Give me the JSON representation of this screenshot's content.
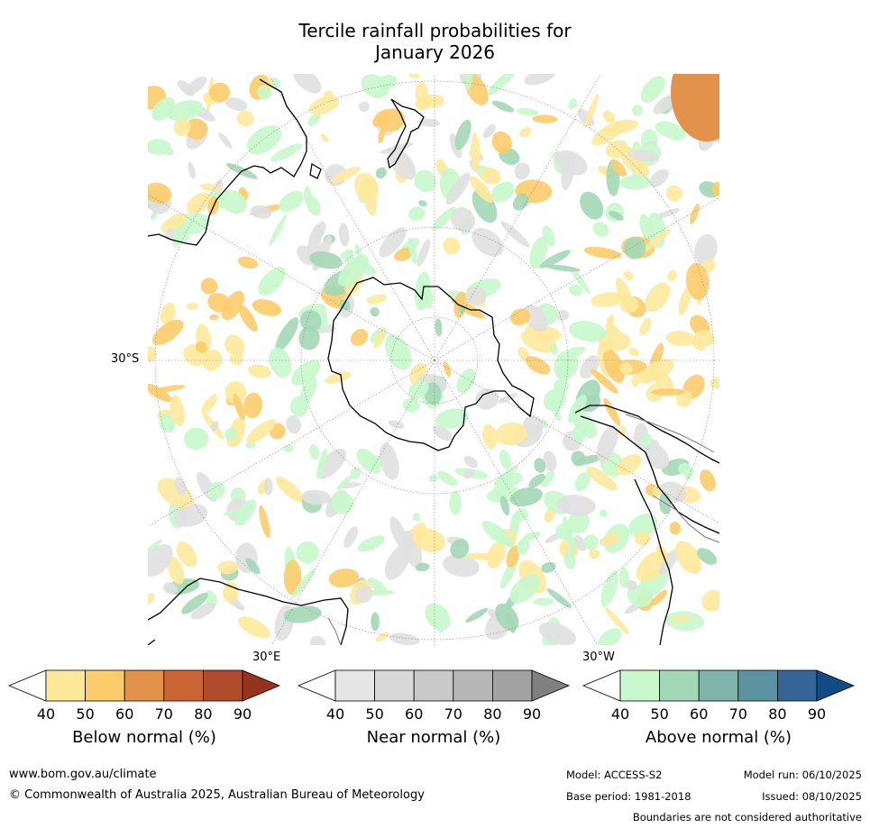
{
  "title_line1": "Tercile rainfall probabilities for",
  "title_line2": "January 2026",
  "map": {
    "projection": "south-polar-stereographic",
    "lat_label": "30°S",
    "lon_label_east": "30°E",
    "lon_label_west": "30°W"
  },
  "colorbars": [
    {
      "title": "Below normal (%)",
      "ticks": [
        "40",
        "50",
        "60",
        "70",
        "80",
        "90"
      ],
      "colors": [
        "#ffffff",
        "#fee99b",
        "#fccc6a",
        "#e2924a",
        "#cc6534",
        "#b04c2b",
        "#97321f"
      ]
    },
    {
      "title": "Near normal (%)",
      "ticks": [
        "40",
        "50",
        "60",
        "70",
        "80",
        "90"
      ],
      "colors": [
        "#ffffff",
        "#e6e6e6",
        "#d8d8d8",
        "#c9c9c9",
        "#b7b7b7",
        "#a2a2a2",
        "#808080"
      ]
    },
    {
      "title": "Above normal (%)",
      "ticks": [
        "40",
        "50",
        "60",
        "70",
        "80",
        "90"
      ],
      "colors": [
        "#ffffff",
        "#c8f8cc",
        "#a3d8b6",
        "#7fb4ac",
        "#5b93a0",
        "#356596",
        "#134b87"
      ]
    }
  ],
  "footer": {
    "url": "www.bom.gov.au/climate",
    "copyright": "© Commonwealth of Australia 2025, Australian Bureau of Meteorology",
    "model": "Model: ACCESS-S2",
    "model_run": "Model run: 06/10/2025",
    "base_period": "Base period: 1981-2018",
    "issued": "Issued: 08/10/2025",
    "disclaimer": "Boundaries are not considered authoritative"
  }
}
